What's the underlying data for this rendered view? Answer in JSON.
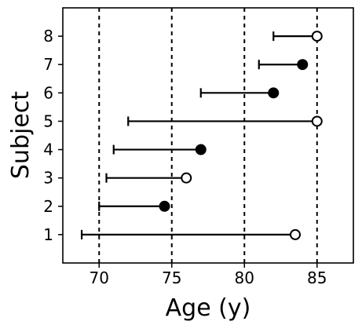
{
  "chart_data": {
    "type": "scatter",
    "xlabel": "Age (y)",
    "ylabel": "Subject",
    "xlim": [
      67.5,
      87.5
    ],
    "ylim": [
      0,
      9
    ],
    "xticks": [
      70,
      75,
      80,
      85
    ],
    "xtick_labels": [
      "70",
      "75",
      "80",
      "85"
    ],
    "yticks": [
      1,
      2,
      3,
      4,
      5,
      6,
      7,
      8
    ],
    "ytick_labels": [
      "1",
      "2",
      "3",
      "4",
      "5",
      "6",
      "7",
      "8"
    ],
    "vertical_dashed_lines": [
      70,
      75,
      80,
      85
    ],
    "subjects": [
      {
        "subject": 1,
        "start": 68.8,
        "end": 83.5,
        "event": "open"
      },
      {
        "subject": 2,
        "start": 70.0,
        "end": 74.5,
        "event": "filled"
      },
      {
        "subject": 3,
        "start": 70.5,
        "end": 76.0,
        "event": "open"
      },
      {
        "subject": 4,
        "start": 71.0,
        "end": 77.0,
        "event": "filled"
      },
      {
        "subject": 5,
        "start": 72.0,
        "end": 85.0,
        "event": "open"
      },
      {
        "subject": 6,
        "start": 77.0,
        "end": 82.0,
        "event": "filled"
      },
      {
        "subject": 7,
        "start": 81.0,
        "end": 84.0,
        "event": "filled"
      },
      {
        "subject": 8,
        "start": 82.0,
        "end": 85.0,
        "event": "open"
      }
    ],
    "colors": {
      "line": "#000000",
      "open_fill": "#ffffff",
      "filled_fill": "#000000"
    }
  }
}
